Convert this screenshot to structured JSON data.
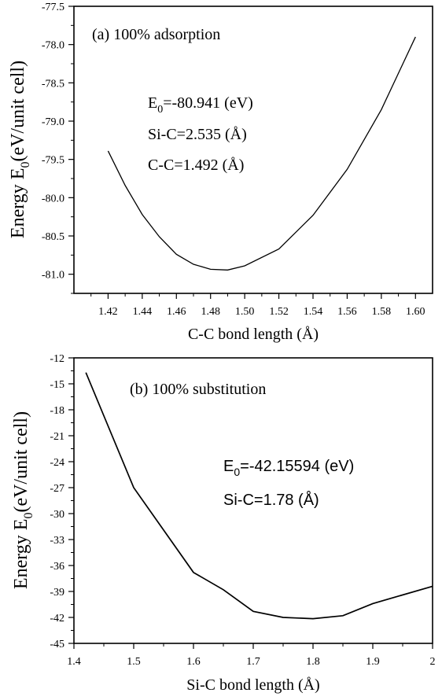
{
  "chart_data": [
    {
      "type": "line",
      "panel_label": "(a) 100% adsorption",
      "xlabel": "C-C bond length (Å)",
      "ylabel_main": "Energy E",
      "ylabel_sub": "0",
      "ylabel_tail": "(eV/unit cell)",
      "xlim": [
        1.4,
        1.61
      ],
      "ylim": [
        -81.25,
        -77.5
      ],
      "xticks": [
        "1.42",
        "1.44",
        "1.46",
        "1.48",
        "1.50",
        "1.52",
        "1.54",
        "1.56",
        "1.58",
        "1.60"
      ],
      "yticks": [
        "-77.5",
        "-78.0",
        "-78.5",
        "-79.0",
        "-79.5",
        "-80.0",
        "-80.5",
        "-81.0"
      ],
      "annotations": [
        {
          "main": "E",
          "sub": "0",
          "tail": "=-80.941 (eV)"
        },
        {
          "main": "Si-C=2.535 (Å)",
          "sub": "",
          "tail": ""
        },
        {
          "main": "C-C=1.492 (Å)",
          "sub": "",
          "tail": ""
        }
      ],
      "x": [
        1.42,
        1.43,
        1.44,
        1.45,
        1.46,
        1.47,
        1.48,
        1.49,
        1.5,
        1.52,
        1.54,
        1.56,
        1.58,
        1.6
      ],
      "y": [
        -79.39,
        -79.84,
        -80.22,
        -80.51,
        -80.74,
        -80.87,
        -80.935,
        -80.945,
        -80.89,
        -80.67,
        -80.23,
        -79.63,
        -78.85,
        -77.9
      ]
    },
    {
      "type": "line",
      "panel_label": "(b) 100% substitution",
      "xlabel": "Si-C bond length (Å)",
      "ylabel_main": "Energy E",
      "ylabel_sub": "0",
      "ylabel_tail": "(eV/unit cell)",
      "xlim": [
        1.4,
        2.0
      ],
      "ylim": [
        -45,
        -12
      ],
      "xticks": [
        "1.4",
        "1.5",
        "1.6",
        "1.7",
        "1.8",
        "1.9",
        "2"
      ],
      "yticks": [
        "-12",
        "-15",
        "-18",
        "-21",
        "-24",
        "-27",
        "-30",
        "-33",
        "-36",
        "-39",
        "-42",
        "-45"
      ],
      "annotations": [
        {
          "main": "E",
          "sub": "0",
          "tail": "=-42.15594 (eV)"
        },
        {
          "main": "Si-C=1.78 (Å)",
          "sub": "",
          "tail": ""
        }
      ],
      "x": [
        1.42,
        1.5,
        1.6,
        1.65,
        1.7,
        1.75,
        1.8,
        1.85,
        1.9,
        2.0
      ],
      "y": [
        -13.7,
        -27.0,
        -36.8,
        -38.8,
        -41.3,
        -42.0,
        -42.15,
        -41.8,
        -40.4,
        -38.4
      ]
    }
  ]
}
